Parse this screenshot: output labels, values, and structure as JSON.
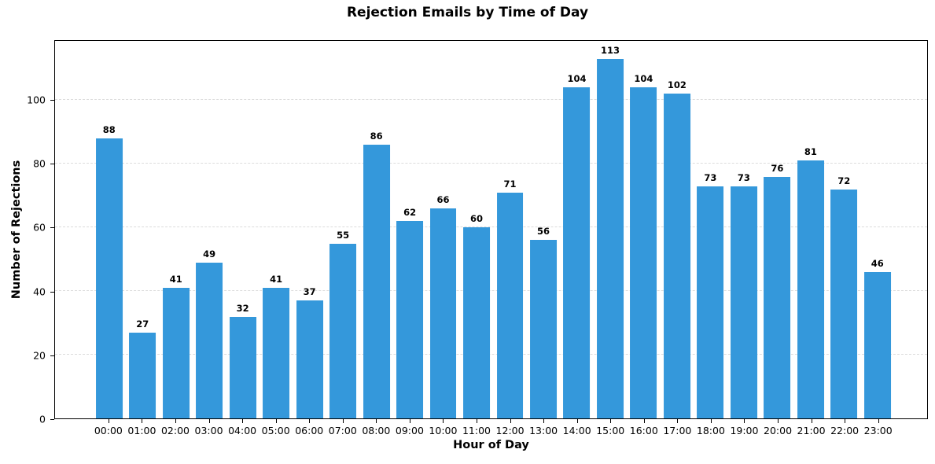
{
  "chart_data": {
    "type": "bar",
    "title": "Rejection Emails by Time of Day",
    "xlabel": "Hour of Day",
    "ylabel": "Number of Rejections",
    "categories": [
      "00:00",
      "01:00",
      "02:00",
      "03:00",
      "04:00",
      "05:00",
      "06:00",
      "07:00",
      "08:00",
      "09:00",
      "10:00",
      "11:00",
      "12:00",
      "13:00",
      "14:00",
      "15:00",
      "16:00",
      "17:00",
      "18:00",
      "19:00",
      "20:00",
      "21:00",
      "22:00",
      "23:00"
    ],
    "values": [
      88,
      27,
      41,
      49,
      32,
      41,
      37,
      55,
      86,
      62,
      66,
      60,
      71,
      56,
      104,
      113,
      104,
      102,
      73,
      73,
      76,
      81,
      72,
      46
    ],
    "ylim": [
      0,
      118.65
    ],
    "yticks": [
      0,
      20,
      40,
      60,
      80,
      100
    ],
    "bar_color": "#3498db",
    "grid": "horizontal-dashed",
    "gridline_color": "#dcdcdc",
    "value_labels": true,
    "legend": "none"
  }
}
